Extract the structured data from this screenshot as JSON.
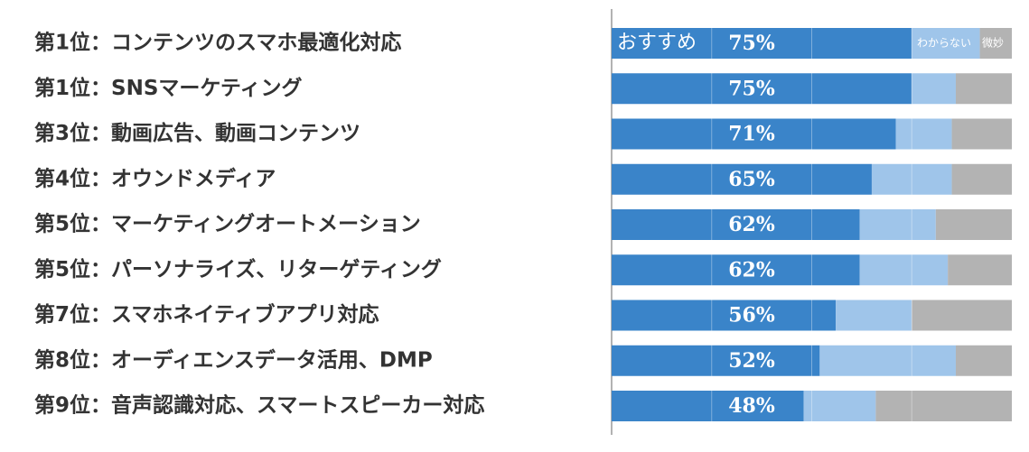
{
  "chart_data": {
    "type": "stacked-barh",
    "categories": [
      "第1位：コンテンツのスマホ最適化対応",
      "第1位：SNSマーケティング",
      "第3位：動画広告、動画コンテンツ",
      "第4位：オウンドメディア",
      "第5位：マーケティングオートメーション",
      "第5位：パーソナライズ、リターゲティング",
      "第7位：スマホネイティブアプリ対応",
      "第8位：オーディエンスデータ活用、DMP",
      "第9位：音声認識対応、スマートスピーカー対応"
    ],
    "series": [
      {
        "name": "おすすめ",
        "color": "#3a84c9",
        "values": [
          75,
          75,
          71,
          65,
          62,
          62,
          56,
          52,
          48
        ],
        "value_labels": [
          "75%",
          "75%",
          "71%",
          "65%",
          "62%",
          "62%",
          "56%",
          "52%",
          "48%"
        ]
      },
      {
        "name": "わからない",
        "color": "#9fc5ea",
        "values": [
          17,
          11,
          14,
          20,
          19,
          22,
          19,
          34,
          18
        ]
      },
      {
        "name": "微妙",
        "color": "#b3b3b3",
        "values": [
          8,
          14,
          15,
          15,
          19,
          16,
          25,
          14,
          34
        ]
      }
    ],
    "xlim": [
      0,
      100
    ],
    "xticks": [
      25,
      50,
      75
    ],
    "grid": true
  }
}
